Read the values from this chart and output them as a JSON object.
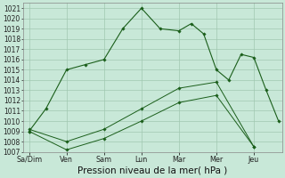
{
  "background_color": "#c8e8d8",
  "grid_color": "#a0c8b0",
  "line_color": "#1a5e1a",
  "xlabel": "Pression niveau de la mer( hPa )",
  "ylim": [
    1007,
    1021.5
  ],
  "ytick_min": 1007,
  "ytick_max": 1022,
  "x_labels": [
    "Sa/Dim",
    "Ven",
    "Sam",
    "Lun",
    "Mar",
    "Mer",
    "Jeu"
  ],
  "x_ticks": [
    0,
    1,
    2,
    3,
    4,
    5,
    6
  ],
  "line1_x": [
    0,
    1,
    2,
    3,
    4,
    5,
    6
  ],
  "line1_y": [
    1009.0,
    1007.2,
    1008.3,
    1010.0,
    1011.8,
    1012.5,
    1007.5
  ],
  "line2_x": [
    0,
    1,
    2,
    3,
    4,
    5,
    6
  ],
  "line2_y": [
    1009.2,
    1008.0,
    1009.2,
    1011.2,
    1013.2,
    1013.8,
    1007.5
  ],
  "line3_x": [
    0,
    0.45,
    1.0,
    1.5,
    2.0,
    2.5,
    3.0,
    3.5,
    4.0,
    4.33,
    4.66,
    5.0,
    5.33,
    5.66,
    6.0,
    6.33,
    6.66
  ],
  "line3_y": [
    1009.0,
    1011.2,
    1015.0,
    1015.5,
    1016.0,
    1019.0,
    1021.0,
    1019.0,
    1018.8,
    1019.5,
    1018.5,
    1015.0,
    1014.0,
    1016.5,
    1016.2,
    1013.0,
    1010.0
  ],
  "figsize": [
    3.2,
    2.0
  ],
  "dpi": 100,
  "label_fontsize": 6.5,
  "xlabel_fontsize": 7.5
}
